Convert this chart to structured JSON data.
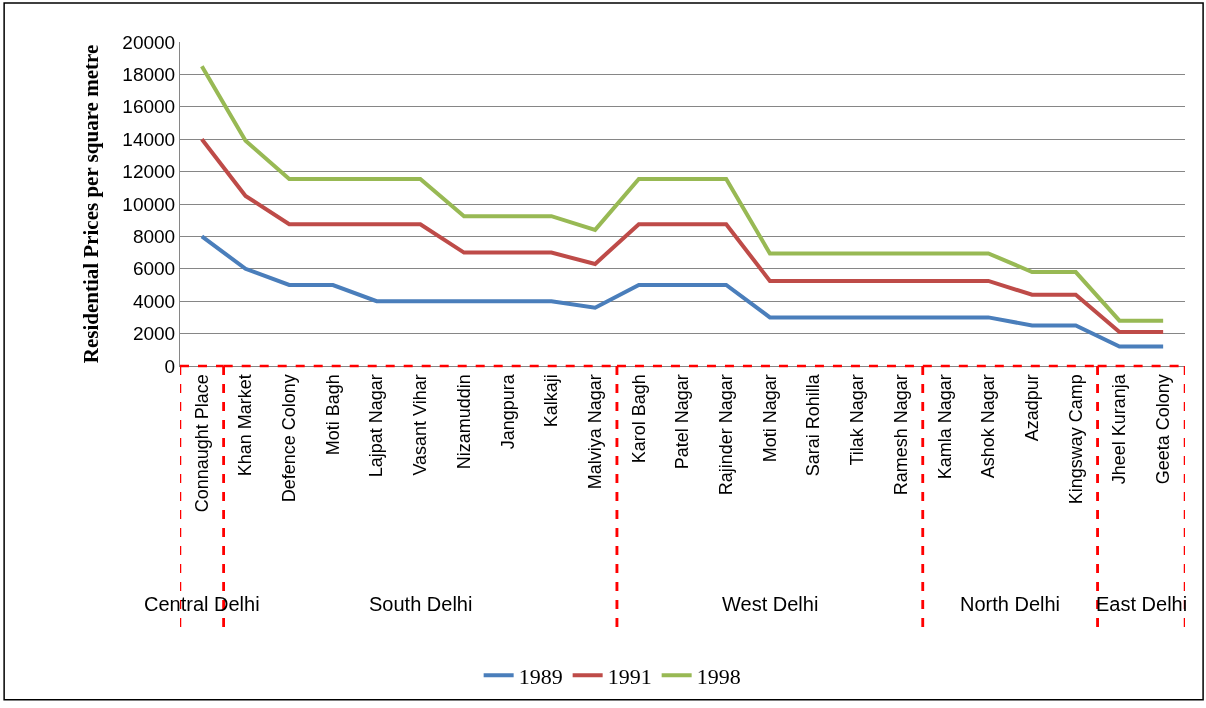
{
  "chart_data": {
    "type": "line",
    "ylabel": "Residential Prices per square metre",
    "categories": [
      "Connaught Place",
      "Khan Market",
      "Defence Colony",
      "Moti Bagh",
      "Lajpat Nagar",
      "Vasant Vihar",
      "Nizamuddin",
      "Jangpura",
      "Kalkaji",
      "Malviya Nagar",
      "Karol Bagh",
      "Patel Nagar",
      "Rajinder Nagar",
      "Moti Nagar",
      "Sarai Rohilla",
      "Tilak Nagar",
      "Ramesh Nagar",
      "Kamla Nagar",
      "Ashok Nagar",
      "Azadpur",
      "Kingsway Camp",
      "Jheel Kuranja",
      "Geeta Colony"
    ],
    "series": [
      {
        "name": "1989",
        "color": "#4a7ebb",
        "values": [
          8000,
          6000,
          5000,
          5000,
          4000,
          4000,
          4000,
          4000,
          4000,
          3600,
          5000,
          5000,
          5000,
          3000,
          3000,
          3000,
          3000,
          3000,
          3000,
          2500,
          2500,
          1200,
          1200
        ]
      },
      {
        "name": "1991",
        "color": "#be4b48",
        "values": [
          14000,
          10500,
          8750,
          8750,
          8750,
          8750,
          7000,
          7000,
          7000,
          6300,
          8750,
          8750,
          8750,
          5250,
          5250,
          5250,
          5250,
          5250,
          5250,
          4400,
          4400,
          2100,
          2100
        ]
      },
      {
        "name": "1998",
        "color": "#98b954",
        "values": [
          18500,
          13900,
          11550,
          11550,
          11550,
          11550,
          9250,
          9250,
          9250,
          8400,
          11550,
          11550,
          11550,
          6950,
          6950,
          6950,
          6950,
          6950,
          6950,
          5800,
          5800,
          2800,
          2800
        ]
      }
    ],
    "annotations": [
      "Central Delhi",
      "South Delhi",
      "West Delhi",
      "North Delhi",
      "East Delhi"
    ],
    "ylim": [
      0,
      20000
    ],
    "yticks": [
      0,
      2000,
      4000,
      6000,
      8000,
      10000,
      12000,
      14000,
      16000,
      18000,
      20000
    ],
    "grid": "y",
    "legend": "bottom",
    "marker": "none",
    "line_style": "solid"
  }
}
